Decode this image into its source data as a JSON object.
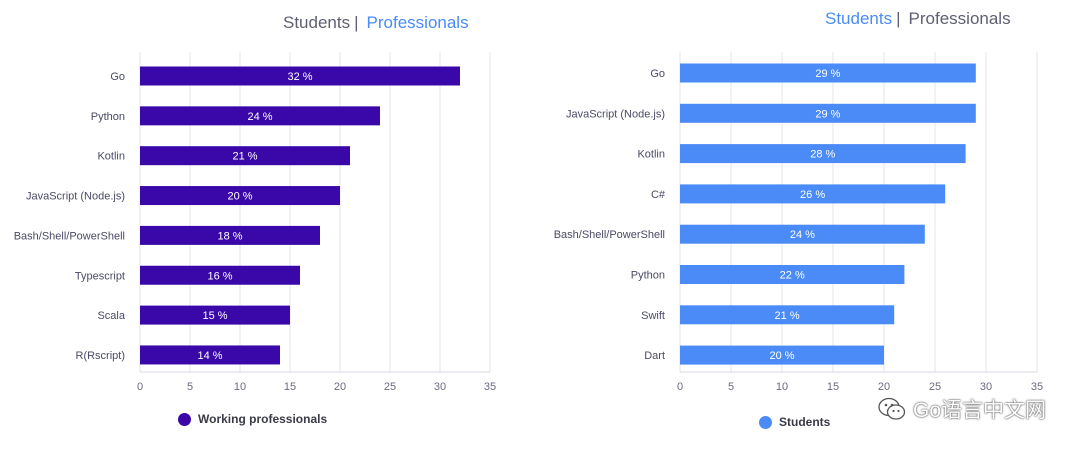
{
  "left_header": {
    "students": "Students",
    "professionals": "Professionals"
  },
  "right_header": {
    "students": "Students",
    "professionals": "Professionals"
  },
  "watermark": {
    "text": "Go语言中文网"
  },
  "chart_data": [
    {
      "type": "bar",
      "orientation": "horizontal",
      "categories": [
        "Go",
        "Python",
        "Kotlin",
        "JavaScript (Node.js)",
        "Bash/Shell/PowerShell",
        "Typescript",
        "Scala",
        "R(Rscript)"
      ],
      "values": [
        32,
        24,
        21,
        20,
        18,
        16,
        15,
        14
      ],
      "data_labels": [
        "32 %",
        "24 %",
        "21 %",
        "20 %",
        "18 %",
        "16 %",
        "15 %",
        "14 %"
      ],
      "xlim": [
        0,
        35
      ],
      "xticks": [
        0,
        5,
        10,
        15,
        20,
        25,
        30,
        35
      ],
      "grid": true,
      "color": "#3a08a8",
      "legend": "Working professionals",
      "legend_position": "bottom"
    },
    {
      "type": "bar",
      "orientation": "horizontal",
      "categories": [
        "Go",
        "JavaScript (Node.js)",
        "Kotlin",
        "C#",
        "Bash/Shell/PowerShell",
        "Python",
        "Swift",
        "Dart"
      ],
      "values": [
        29,
        29,
        28,
        26,
        24,
        22,
        21,
        20
      ],
      "data_labels": [
        "29 %",
        "29 %",
        "28 %",
        "26 %",
        "24 %",
        "22 %",
        "21 %",
        "20 %"
      ],
      "xlim": [
        0,
        35
      ],
      "xticks": [
        0,
        5,
        10,
        15,
        20,
        25,
        30,
        35
      ],
      "grid": true,
      "color": "#4a8bf7",
      "legend": "Students",
      "legend_position": "bottom"
    }
  ]
}
